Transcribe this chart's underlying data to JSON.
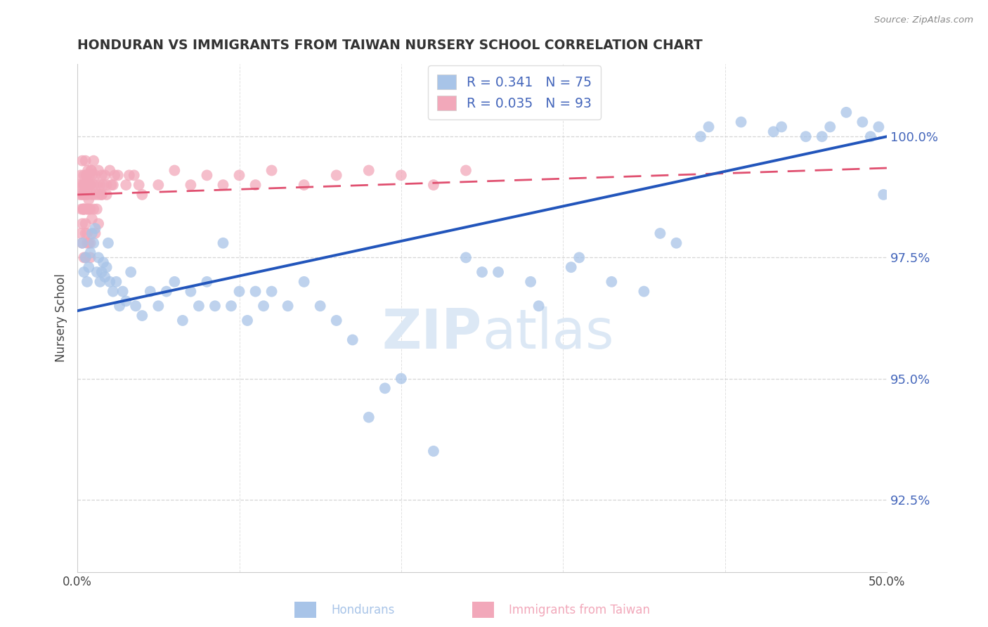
{
  "title": "HONDURAN VS IMMIGRANTS FROM TAIWAN NURSERY SCHOOL CORRELATION CHART",
  "source": "Source: ZipAtlas.com",
  "xlabel_blue": "Hondurans",
  "xlabel_pink": "Immigrants from Taiwan",
  "ylabel": "Nursery School",
  "xlim": [
    0.0,
    50.0
  ],
  "ylim": [
    91.0,
    101.5
  ],
  "yticks": [
    92.5,
    95.0,
    97.5,
    100.0
  ],
  "ytick_labels": [
    "92.5%",
    "95.0%",
    "97.5%",
    "100.0%"
  ],
  "xticks": [
    0.0,
    10.0,
    20.0,
    30.0,
    40.0,
    50.0
  ],
  "xtick_labels": [
    "0.0%",
    "",
    "",
    "",
    "",
    "50.0%"
  ],
  "R_blue": 0.341,
  "N_blue": 75,
  "R_pink": 0.035,
  "N_pink": 93,
  "blue_color": "#a8c4e8",
  "pink_color": "#f2a8ba",
  "blue_line_color": "#2255bb",
  "pink_line_color": "#e05070",
  "title_color": "#333333",
  "axis_color": "#bbbbbb",
  "label_color": "#4466bb",
  "watermark_color": "#dce8f5",
  "blue_line_x0": 0,
  "blue_line_x1": 50,
  "blue_line_y0": 96.4,
  "blue_line_y1": 100.0,
  "pink_line_x0": 0,
  "pink_line_x1": 50,
  "pink_line_y0": 98.8,
  "pink_line_y1": 99.35,
  "blue_scatter_x": [
    0.3,
    0.4,
    0.5,
    0.6,
    0.7,
    0.8,
    0.9,
    1.0,
    1.1,
    1.2,
    1.3,
    1.4,
    1.5,
    1.6,
    1.7,
    1.8,
    1.9,
    2.0,
    2.2,
    2.4,
    2.6,
    2.8,
    3.0,
    3.3,
    3.6,
    4.0,
    4.5,
    5.0,
    5.5,
    6.0,
    6.5,
    7.0,
    7.5,
    8.0,
    8.5,
    9.0,
    9.5,
    10.0,
    10.5,
    11.0,
    11.5,
    12.0,
    13.0,
    14.0,
    15.0,
    16.0,
    17.0,
    18.0,
    19.0,
    20.0,
    22.0,
    24.0,
    26.0,
    28.0,
    30.5,
    33.0,
    35.0,
    37.0,
    39.0,
    41.0,
    43.0,
    45.0,
    46.5,
    47.5,
    48.5,
    49.0,
    49.5,
    49.8,
    46.0,
    43.5,
    38.5,
    36.0,
    31.0,
    28.5,
    25.0
  ],
  "blue_scatter_y": [
    97.8,
    97.2,
    97.5,
    97.0,
    97.3,
    97.6,
    98.0,
    97.8,
    98.1,
    97.2,
    97.5,
    97.0,
    97.2,
    97.4,
    97.1,
    97.3,
    97.8,
    97.0,
    96.8,
    97.0,
    96.5,
    96.8,
    96.6,
    97.2,
    96.5,
    96.3,
    96.8,
    96.5,
    96.8,
    97.0,
    96.2,
    96.8,
    96.5,
    97.0,
    96.5,
    97.8,
    96.5,
    96.8,
    96.2,
    96.8,
    96.5,
    96.8,
    96.5,
    97.0,
    96.5,
    96.2,
    95.8,
    94.2,
    94.8,
    95.0,
    93.5,
    97.5,
    97.2,
    97.0,
    97.3,
    97.0,
    96.8,
    97.8,
    100.2,
    100.3,
    100.1,
    100.0,
    100.2,
    100.5,
    100.3,
    100.0,
    100.2,
    98.8,
    100.0,
    100.2,
    100.0,
    98.0,
    97.5,
    96.5,
    97.2
  ],
  "pink_scatter_x": [
    0.1,
    0.15,
    0.2,
    0.25,
    0.3,
    0.3,
    0.35,
    0.4,
    0.4,
    0.45,
    0.5,
    0.5,
    0.5,
    0.55,
    0.6,
    0.6,
    0.65,
    0.7,
    0.7,
    0.75,
    0.8,
    0.8,
    0.85,
    0.9,
    0.9,
    1.0,
    1.0,
    1.0,
    1.1,
    1.1,
    1.2,
    1.2,
    1.3,
    1.3,
    1.4,
    1.5,
    1.5,
    1.6,
    1.7,
    1.8,
    2.0,
    2.2,
    2.5,
    3.0,
    3.5,
    4.0,
    5.0,
    6.0,
    7.0,
    8.0,
    9.0,
    10.0,
    11.0,
    12.0,
    14.0,
    16.0,
    18.0,
    20.0,
    22.0,
    24.0,
    0.2,
    0.3,
    0.4,
    0.3,
    0.5,
    0.6,
    0.4,
    0.7,
    0.3,
    0.8,
    0.5,
    0.4,
    0.6,
    0.5,
    0.9,
    1.1,
    0.7,
    0.8,
    1.3,
    0.6,
    2.1,
    1.5,
    0.4,
    0.35,
    3.2,
    0.45,
    0.55,
    0.65,
    0.75,
    0.85,
    3.8,
    2.3,
    1.8
  ],
  "pink_scatter_y": [
    99.0,
    98.8,
    99.2,
    98.5,
    99.5,
    99.0,
    98.8,
    99.2,
    98.5,
    99.0,
    99.5,
    99.0,
    98.8,
    99.2,
    99.0,
    98.5,
    99.3,
    99.0,
    98.7,
    99.2,
    99.0,
    98.5,
    99.3,
    99.2,
    98.8,
    99.5,
    99.0,
    98.5,
    99.2,
    98.8,
    99.0,
    98.5,
    99.3,
    98.8,
    99.0,
    99.2,
    98.8,
    99.0,
    99.2,
    99.0,
    99.3,
    99.0,
    99.2,
    99.0,
    99.2,
    98.8,
    99.0,
    99.3,
    99.0,
    99.2,
    99.0,
    99.2,
    99.0,
    99.3,
    99.0,
    99.2,
    99.3,
    99.2,
    99.0,
    99.3,
    98.0,
    97.8,
    97.5,
    98.2,
    97.5,
    98.0,
    98.5,
    97.8,
    98.8,
    97.5,
    98.2,
    98.5,
    97.8,
    98.0,
    98.3,
    98.0,
    98.5,
    97.8,
    98.2,
    98.5,
    99.0,
    98.8,
    99.0,
    98.5,
    99.2,
    99.0,
    99.2,
    98.8,
    99.0,
    99.3,
    99.0,
    99.2,
    98.8
  ]
}
